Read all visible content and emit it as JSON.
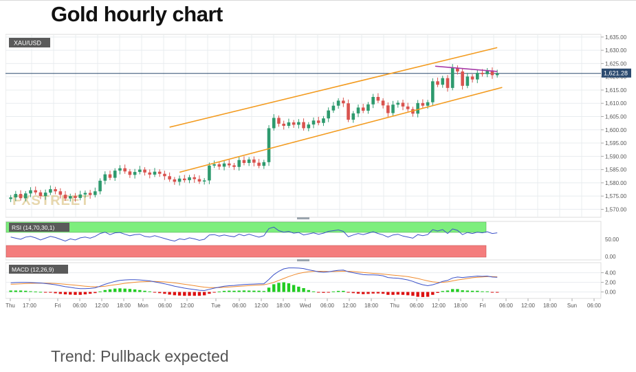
{
  "page": {
    "title": "Gold hourly chart",
    "trend_text": "Trend: Pullback expected"
  },
  "chart_data": [
    {
      "type": "candlestick",
      "symbol": "XAU/USD",
      "watermark": "FXSTREET",
      "last_price": 1621.28,
      "last_price_label": "1,621.28",
      "ylim": [
        1567,
        1636
      ],
      "y_ticks": [
        1570,
        1575,
        1580,
        1585,
        1590,
        1595,
        1600,
        1605,
        1610,
        1615,
        1620,
        1625,
        1630,
        1635
      ],
      "y_tick_labels": [
        "1,570.00",
        "1,575.00",
        "1,580.00",
        "1,585.00",
        "1,590.00",
        "1,595.00",
        "1,600.00",
        "1,605.00",
        "1,610.00",
        "1,615.00",
        "1,620.00",
        "1,625.00",
        "1,630.00",
        "1,635.00"
      ],
      "x_labels": [
        "Thu",
        "17:00",
        "Fri",
        "06:00",
        "12:00",
        "18:00",
        "Mon",
        "06:00",
        "12:00",
        "Tue",
        "06:00",
        "12:00",
        "18:00",
        "Wed",
        "06:00",
        "12:00",
        "18:00",
        "Thu",
        "06:00",
        "12:00",
        "18:00",
        "Fri",
        "06:00",
        "12:00",
        "18:00",
        "Sun",
        "06:00"
      ],
      "candles_close": [
        1574.5,
        1575.8,
        1574.2,
        1576.0,
        1577.2,
        1576.4,
        1575.0,
        1576.3,
        1577.6,
        1576.8,
        1575.5,
        1574.1,
        1575.0,
        1574.3,
        1575.6,
        1576.2,
        1575.4,
        1576.8,
        1580.8,
        1583.2,
        1581.9,
        1584.6,
        1585.5,
        1584.3,
        1583.0,
        1584.1,
        1585.0,
        1583.9,
        1583.1,
        1584.2,
        1583.4,
        1582.5,
        1581.3,
        1580.4,
        1581.6,
        1581.0,
        1582.1,
        1581.4,
        1580.5,
        1580.9,
        1586.5,
        1587.0,
        1586.1,
        1587.3,
        1586.6,
        1586.0,
        1588.6,
        1587.5,
        1588.8,
        1587.6,
        1586.4,
        1587.8,
        1600.6,
        1604.5,
        1602.3,
        1601.5,
        1602.8,
        1601.9,
        1602.9,
        1600.6,
        1602.0,
        1603.5,
        1602.6,
        1604.3,
        1607.3,
        1609.1,
        1611.0,
        1610.0,
        1603.8,
        1606.2,
        1608.4,
        1607.2,
        1609.6,
        1612.4,
        1611.0,
        1609.2,
        1606.3,
        1609.5,
        1610.2,
        1608.8,
        1607.8,
        1606.1,
        1610.1,
        1609.1,
        1610.4,
        1618.3,
        1617.0,
        1619.5,
        1615.8,
        1623.4,
        1622.0,
        1616.6,
        1620.1,
        1619.0,
        1621.5,
        1621.0,
        1622.4,
        1620.6,
        1621.28
      ],
      "channel_upper": {
        "start": [
          32,
          1601
        ],
        "end": [
          98,
          1631
        ]
      },
      "channel_lower": {
        "start": [
          34,
          1584
        ],
        "end": [
          99,
          1616
        ]
      },
      "resistance_line": {
        "start": [
          85.5,
          1624
        ],
        "end": [
          98,
          1622
        ]
      },
      "indicators": [
        {
          "name": "RSI",
          "label": "RSI (14,70,30,1)",
          "levels": [
            70,
            30
          ],
          "y_tick_labels": [
            "50.00",
            "0.00"
          ],
          "overbought_zone": "green",
          "oversold_zone": "red",
          "values": [
            58,
            55,
            52,
            58,
            60,
            56,
            50,
            55,
            60,
            57,
            52,
            47,
            53,
            50,
            56,
            58,
            55,
            60,
            68,
            72,
            65,
            70,
            71,
            66,
            62,
            65,
            66,
            60,
            58,
            62,
            58,
            54,
            50,
            47,
            53,
            51,
            56,
            53,
            49,
            52,
            64,
            65,
            61,
            64,
            61,
            59,
            66,
            62,
            66,
            62,
            58,
            62,
            82,
            86,
            76,
            72,
            74,
            69,
            71,
            64,
            67,
            70,
            66,
            69,
            74,
            76,
            78,
            74,
            59,
            64,
            68,
            65,
            69,
            73,
            68,
            64,
            58,
            64,
            66,
            61,
            58,
            55,
            65,
            62,
            65,
            79,
            75,
            79,
            68,
            81,
            77,
            65,
            71,
            68,
            72,
            70,
            73,
            68,
            70
          ]
        },
        {
          "name": "MACD",
          "label": "MACD (12,26,9)",
          "y_tick_labels": [
            "4.00",
            "2.00",
            "0.00"
          ],
          "y_ticks": [
            4,
            2,
            0
          ],
          "ylim": [
            -1.2,
            5.8
          ],
          "macd": [
            1.9,
            1.95,
            2.0,
            2.0,
            1.95,
            1.9,
            1.85,
            1.75,
            1.65,
            1.5,
            1.3,
            1.1,
            0.95,
            0.8,
            0.7,
            0.7,
            0.75,
            0.85,
            1.2,
            1.6,
            1.9,
            2.2,
            2.4,
            2.5,
            2.55,
            2.55,
            2.5,
            2.4,
            2.3,
            2.1,
            1.9,
            1.7,
            1.45,
            1.2,
            1.0,
            0.8,
            0.65,
            0.5,
            0.35,
            0.3,
            0.55,
            0.8,
            1.0,
            1.2,
            1.3,
            1.35,
            1.45,
            1.55,
            1.6,
            1.65,
            1.7,
            1.7,
            2.6,
            3.6,
            4.3,
            4.8,
            5.0,
            5.0,
            4.95,
            4.85,
            4.6,
            4.4,
            4.2,
            4.1,
            4.2,
            4.35,
            4.5,
            4.55,
            4.2,
            4.0,
            3.8,
            3.6,
            3.55,
            3.55,
            3.5,
            3.35,
            3.0,
            2.9,
            2.85,
            2.7,
            2.5,
            2.2,
            1.8,
            1.5,
            1.3,
            1.5,
            1.8,
            2.2,
            2.4,
            2.9,
            3.1,
            3.0,
            3.1,
            3.2,
            3.3,
            3.25,
            3.3,
            3.1,
            3.05
          ],
          "signal": [
            1.6,
            1.65,
            1.7,
            1.75,
            1.8,
            1.82,
            1.83,
            1.82,
            1.8,
            1.76,
            1.7,
            1.6,
            1.5,
            1.4,
            1.3,
            1.2,
            1.12,
            1.08,
            1.1,
            1.2,
            1.35,
            1.5,
            1.65,
            1.8,
            1.92,
            2.02,
            2.1,
            2.15,
            2.18,
            2.18,
            2.14,
            2.08,
            2.0,
            1.88,
            1.75,
            1.6,
            1.45,
            1.3,
            1.15,
            1.0,
            0.92,
            0.9,
            0.92,
            0.97,
            1.03,
            1.1,
            1.17,
            1.24,
            1.31,
            1.38,
            1.44,
            1.5,
            1.7,
            2.0,
            2.4,
            2.8,
            3.2,
            3.55,
            3.85,
            4.05,
            4.2,
            4.28,
            4.3,
            4.28,
            4.25,
            4.25,
            4.28,
            4.32,
            4.3,
            4.24,
            4.15,
            4.05,
            3.95,
            3.87,
            3.8,
            3.72,
            3.6,
            3.5,
            3.4,
            3.3,
            3.18,
            3.0,
            2.8,
            2.55,
            2.3,
            2.1,
            2.0,
            2.0,
            2.1,
            2.3,
            2.5,
            2.65,
            2.8,
            2.95,
            3.05,
            3.12,
            3.18,
            3.18,
            3.15
          ]
        }
      ]
    }
  ],
  "colors": {
    "bull_candle": "#2e9a6e",
    "bear_candle": "#d9534f",
    "channel": "#f39b1f",
    "resistance": "#a63aa8",
    "price_line": "#2b4a6f",
    "rsi_line": "#3a50c8",
    "macd_line": "#3a50c8",
    "signal_line": "#f08a2c",
    "hist_pos": "#22cc22",
    "hist_neg": "#dd1111",
    "grid": "#e8ecef"
  }
}
